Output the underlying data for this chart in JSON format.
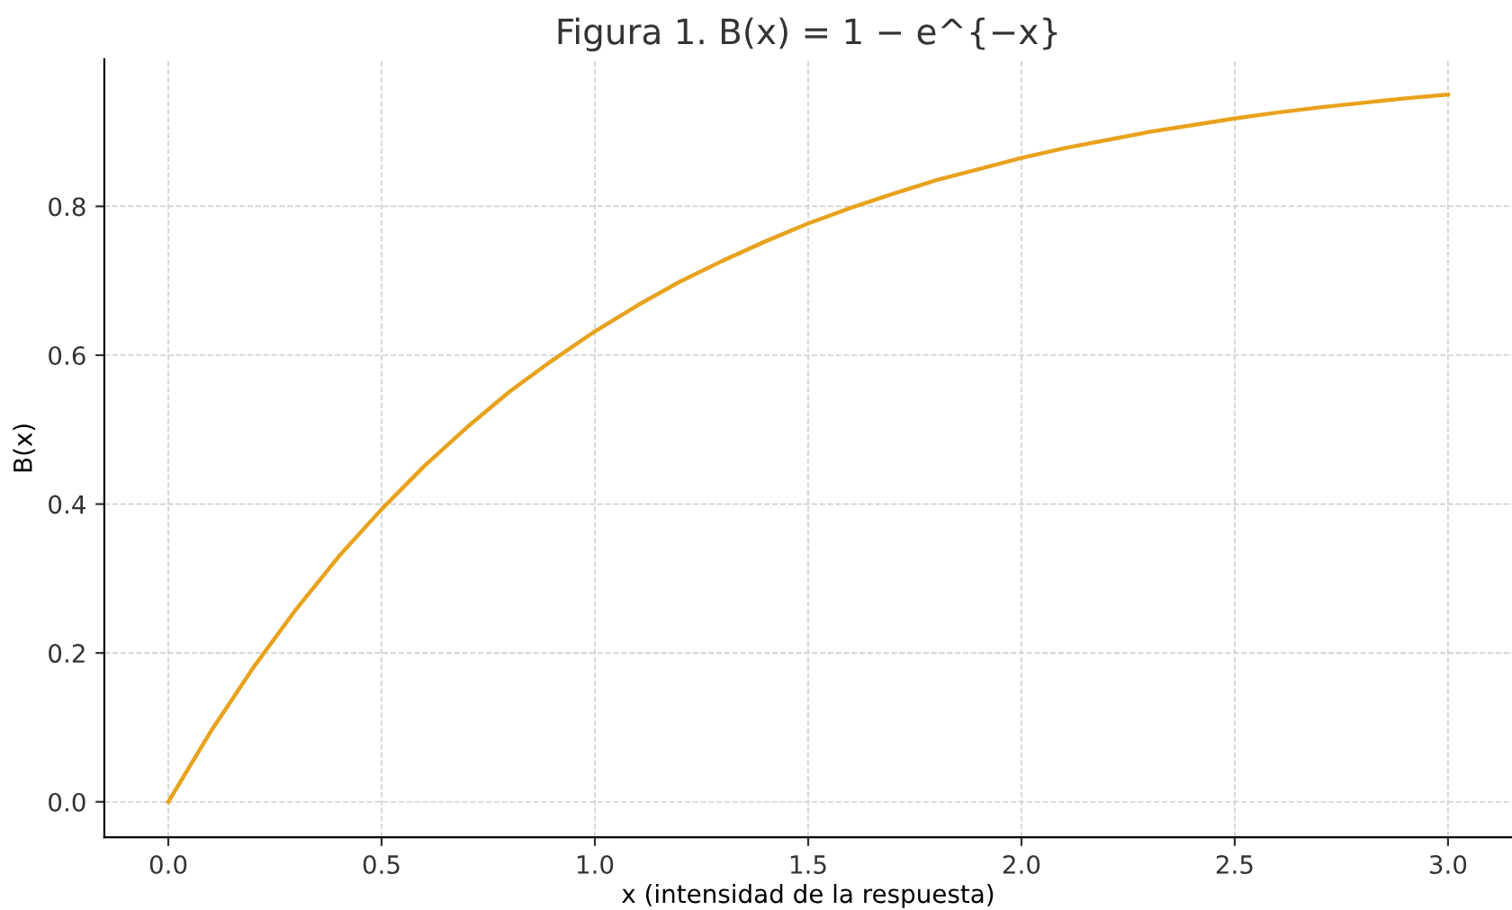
{
  "chart_data": {
    "type": "line",
    "title": "Figura 1. B(x) = 1 − e^{−x}",
    "xlabel": "x (intensidad de la respuesta)",
    "ylabel": "B(x)",
    "x": [
      0,
      0.1,
      0.2,
      0.3,
      0.4,
      0.5,
      0.6,
      0.7,
      0.8,
      0.9,
      1.0,
      1.1,
      1.2,
      1.3,
      1.4,
      1.5,
      1.6,
      1.7,
      1.8,
      1.9,
      2.0,
      2.1,
      2.2,
      2.3,
      2.4,
      2.5,
      2.6,
      2.7,
      2.8,
      2.9,
      3.0
    ],
    "series": [
      {
        "color": "#e8a21c",
        "values": [
          0,
          0.095,
          0.181,
          0.259,
          0.33,
          0.393,
          0.451,
          0.503,
          0.551,
          0.593,
          0.632,
          0.667,
          0.699,
          0.727,
          0.753,
          0.777,
          0.798,
          0.817,
          0.835,
          0.85,
          0.865,
          0.878,
          0.889,
          0.9,
          0.909,
          0.918,
          0.926,
          0.933,
          0.939,
          0.945,
          0.95
        ]
      }
    ],
    "xlim": [
      -0.15,
      3.15
    ],
    "ylim": [
      -0.0475,
      0.9977
    ],
    "xticks": [
      {
        "value": 0,
        "label": "0.0"
      },
      0.5,
      {
        "value": 1,
        "label": "1.0"
      },
      1.5,
      {
        "value": 2,
        "label": "2.0"
      },
      2.5,
      {
        "value": 3,
        "label": "3.0"
      }
    ],
    "yticks": [
      {
        "value": 0,
        "label": "0.0"
      },
      0.2,
      0.4,
      0.6,
      0.8
    ],
    "grid": true,
    "line_style": "solid",
    "marker": "none"
  }
}
